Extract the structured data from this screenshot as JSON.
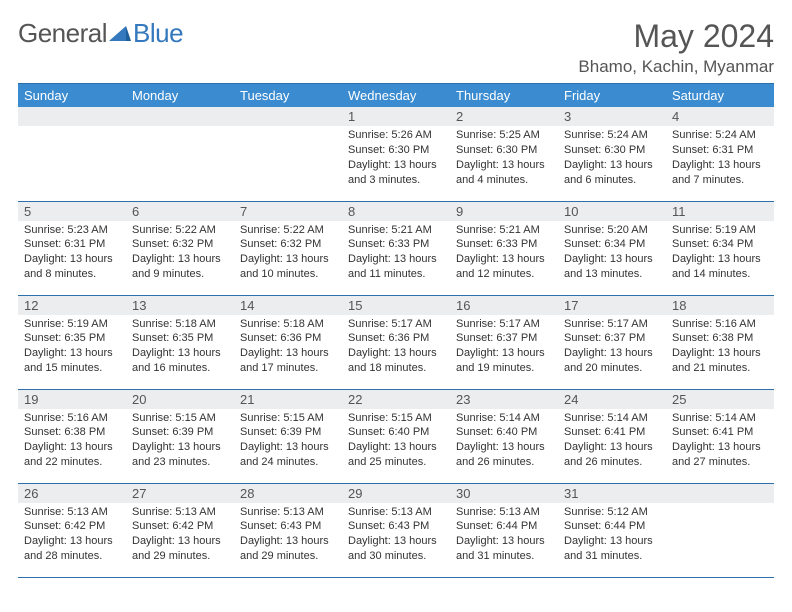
{
  "branding": {
    "word1": "General",
    "word2": "Blue",
    "logo_color": "#3478bd",
    "text_color": "#555555"
  },
  "title": {
    "month": "May 2024",
    "location": "Bhamo, Kachin, Myanmar",
    "month_fontsize": 32,
    "location_fontsize": 17
  },
  "colors": {
    "header_bg": "#3a8bd0",
    "header_text": "#ffffff",
    "daynum_bg": "#ebedef",
    "row_border": "#2d6fa8",
    "body_text": "#333333",
    "page_bg": "#ffffff"
  },
  "columns": [
    "Sunday",
    "Monday",
    "Tuesday",
    "Wednesday",
    "Thursday",
    "Friday",
    "Saturday"
  ],
  "weeks": [
    [
      null,
      null,
      null,
      {
        "n": "1",
        "sunrise": "5:26 AM",
        "sunset": "6:30 PM",
        "daylight": "13 hours and 3 minutes."
      },
      {
        "n": "2",
        "sunrise": "5:25 AM",
        "sunset": "6:30 PM",
        "daylight": "13 hours and 4 minutes."
      },
      {
        "n": "3",
        "sunrise": "5:24 AM",
        "sunset": "6:30 PM",
        "daylight": "13 hours and 6 minutes."
      },
      {
        "n": "4",
        "sunrise": "5:24 AM",
        "sunset": "6:31 PM",
        "daylight": "13 hours and 7 minutes."
      }
    ],
    [
      {
        "n": "5",
        "sunrise": "5:23 AM",
        "sunset": "6:31 PM",
        "daylight": "13 hours and 8 minutes."
      },
      {
        "n": "6",
        "sunrise": "5:22 AM",
        "sunset": "6:32 PM",
        "daylight": "13 hours and 9 minutes."
      },
      {
        "n": "7",
        "sunrise": "5:22 AM",
        "sunset": "6:32 PM",
        "daylight": "13 hours and 10 minutes."
      },
      {
        "n": "8",
        "sunrise": "5:21 AM",
        "sunset": "6:33 PM",
        "daylight": "13 hours and 11 minutes."
      },
      {
        "n": "9",
        "sunrise": "5:21 AM",
        "sunset": "6:33 PM",
        "daylight": "13 hours and 12 minutes."
      },
      {
        "n": "10",
        "sunrise": "5:20 AM",
        "sunset": "6:34 PM",
        "daylight": "13 hours and 13 minutes."
      },
      {
        "n": "11",
        "sunrise": "5:19 AM",
        "sunset": "6:34 PM",
        "daylight": "13 hours and 14 minutes."
      }
    ],
    [
      {
        "n": "12",
        "sunrise": "5:19 AM",
        "sunset": "6:35 PM",
        "daylight": "13 hours and 15 minutes."
      },
      {
        "n": "13",
        "sunrise": "5:18 AM",
        "sunset": "6:35 PM",
        "daylight": "13 hours and 16 minutes."
      },
      {
        "n": "14",
        "sunrise": "5:18 AM",
        "sunset": "6:36 PM",
        "daylight": "13 hours and 17 minutes."
      },
      {
        "n": "15",
        "sunrise": "5:17 AM",
        "sunset": "6:36 PM",
        "daylight": "13 hours and 18 minutes."
      },
      {
        "n": "16",
        "sunrise": "5:17 AM",
        "sunset": "6:37 PM",
        "daylight": "13 hours and 19 minutes."
      },
      {
        "n": "17",
        "sunrise": "5:17 AM",
        "sunset": "6:37 PM",
        "daylight": "13 hours and 20 minutes."
      },
      {
        "n": "18",
        "sunrise": "5:16 AM",
        "sunset": "6:38 PM",
        "daylight": "13 hours and 21 minutes."
      }
    ],
    [
      {
        "n": "19",
        "sunrise": "5:16 AM",
        "sunset": "6:38 PM",
        "daylight": "13 hours and 22 minutes."
      },
      {
        "n": "20",
        "sunrise": "5:15 AM",
        "sunset": "6:39 PM",
        "daylight": "13 hours and 23 minutes."
      },
      {
        "n": "21",
        "sunrise": "5:15 AM",
        "sunset": "6:39 PM",
        "daylight": "13 hours and 24 minutes."
      },
      {
        "n": "22",
        "sunrise": "5:15 AM",
        "sunset": "6:40 PM",
        "daylight": "13 hours and 25 minutes."
      },
      {
        "n": "23",
        "sunrise": "5:14 AM",
        "sunset": "6:40 PM",
        "daylight": "13 hours and 26 minutes."
      },
      {
        "n": "24",
        "sunrise": "5:14 AM",
        "sunset": "6:41 PM",
        "daylight": "13 hours and 26 minutes."
      },
      {
        "n": "25",
        "sunrise": "5:14 AM",
        "sunset": "6:41 PM",
        "daylight": "13 hours and 27 minutes."
      }
    ],
    [
      {
        "n": "26",
        "sunrise": "5:13 AM",
        "sunset": "6:42 PM",
        "daylight": "13 hours and 28 minutes."
      },
      {
        "n": "27",
        "sunrise": "5:13 AM",
        "sunset": "6:42 PM",
        "daylight": "13 hours and 29 minutes."
      },
      {
        "n": "28",
        "sunrise": "5:13 AM",
        "sunset": "6:43 PM",
        "daylight": "13 hours and 29 minutes."
      },
      {
        "n": "29",
        "sunrise": "5:13 AM",
        "sunset": "6:43 PM",
        "daylight": "13 hours and 30 minutes."
      },
      {
        "n": "30",
        "sunrise": "5:13 AM",
        "sunset": "6:44 PM",
        "daylight": "13 hours and 31 minutes."
      },
      {
        "n": "31",
        "sunrise": "5:12 AM",
        "sunset": "6:44 PM",
        "daylight": "13 hours and 31 minutes."
      },
      null
    ]
  ],
  "labels": {
    "sunrise": "Sunrise:",
    "sunset": "Sunset:",
    "daylight": "Daylight:"
  }
}
